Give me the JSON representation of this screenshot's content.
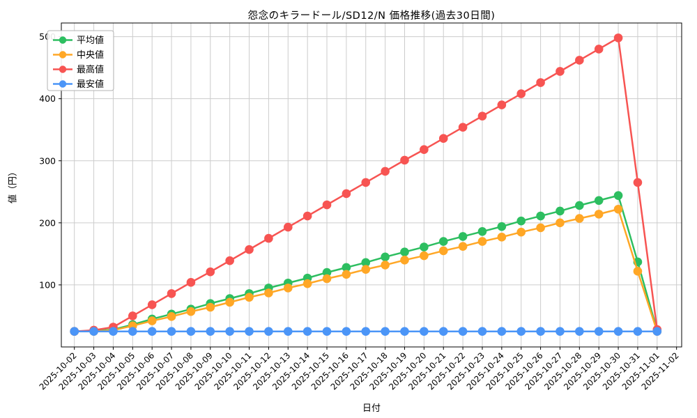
{
  "chart_data": {
    "type": "line",
    "title": "怨念のキラードール/SD12/N 価格推移(過去30日間)",
    "xlabel": "日付",
    "ylabel": "値（円）",
    "x": [
      "2025-10-02",
      "2025-10-03",
      "2025-10-04",
      "2025-10-05",
      "2025-10-06",
      "2025-10-07",
      "2025-10-08",
      "2025-10-09",
      "2025-10-10",
      "2025-10-11",
      "2025-10-12",
      "2025-10-13",
      "2025-10-14",
      "2025-10-15",
      "2025-10-16",
      "2025-10-17",
      "2025-10-18",
      "2025-10-19",
      "2025-10-20",
      "2025-10-21",
      "2025-10-22",
      "2025-10-23",
      "2025-10-24",
      "2025-10-25",
      "2025-10-26",
      "2025-10-27",
      "2025-10-28",
      "2025-10-29",
      "2025-10-30",
      "2025-10-31",
      "2025-11-01",
      "2025-11-02"
    ],
    "series": [
      {
        "key": "avg",
        "name": "平均値",
        "color": "#2dbe60",
        "values": [
          25,
          26,
          28,
          36,
          45,
          53,
          61,
          70,
          78,
          86,
          95,
          103,
          111,
          120,
          128,
          136,
          145,
          153,
          161,
          170,
          178,
          186,
          194,
          203,
          211,
          219,
          228,
          236,
          244,
          137,
          26,
          null
        ]
      },
      {
        "key": "median",
        "name": "中央値",
        "color": "#ffa726",
        "values": [
          25,
          25,
          27,
          34,
          42,
          49,
          57,
          64,
          72,
          80,
          87,
          95,
          102,
          110,
          117,
          125,
          132,
          140,
          147,
          155,
          162,
          170,
          177,
          185,
          192,
          200,
          207,
          214,
          222,
          122,
          25,
          null
        ]
      },
      {
        "key": "max",
        "name": "最高値",
        "color": "#f75452",
        "values": [
          25,
          27,
          32,
          50,
          68,
          86,
          104,
          121,
          139,
          157,
          175,
          193,
          211,
          229,
          247,
          265,
          283,
          301,
          318,
          336,
          354,
          372,
          390,
          408,
          426,
          444,
          462,
          480,
          498,
          265,
          28,
          null
        ]
      },
      {
        "key": "min",
        "name": "最安値",
        "color": "#4b95f7",
        "values": [
          25,
          25,
          25,
          25,
          25,
          25,
          25,
          25,
          25,
          25,
          25,
          25,
          25,
          25,
          25,
          25,
          25,
          25,
          25,
          25,
          25,
          25,
          25,
          25,
          25,
          25,
          25,
          25,
          25,
          25,
          25,
          null
        ]
      }
    ],
    "yticks": [
      100,
      200,
      300,
      400,
      500
    ],
    "ylim": [
      0,
      522
    ],
    "grid": true,
    "legend_position": "upper-left",
    "colors": {
      "grid": "#cccccc",
      "spine": "#000000",
      "text": "#000000",
      "background": "#ffffff"
    }
  }
}
